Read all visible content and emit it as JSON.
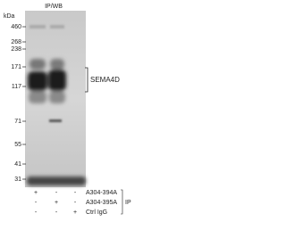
{
  "title": "IP/WB",
  "unit": "kDa",
  "markers": [
    "460",
    "268",
    "238",
    "171",
    "117",
    "71",
    "55",
    "41",
    "31"
  ],
  "target": "SEMA4D",
  "rows": [
    {
      "signs": [
        "+",
        "-",
        "-"
      ],
      "label": "A304-394A"
    },
    {
      "signs": [
        "-",
        "+",
        "-"
      ],
      "label": "A304-395A"
    },
    {
      "signs": [
        "-",
        "-",
        "+"
      ],
      "label": "Ctrl IgG"
    }
  ],
  "group": "IP"
}
